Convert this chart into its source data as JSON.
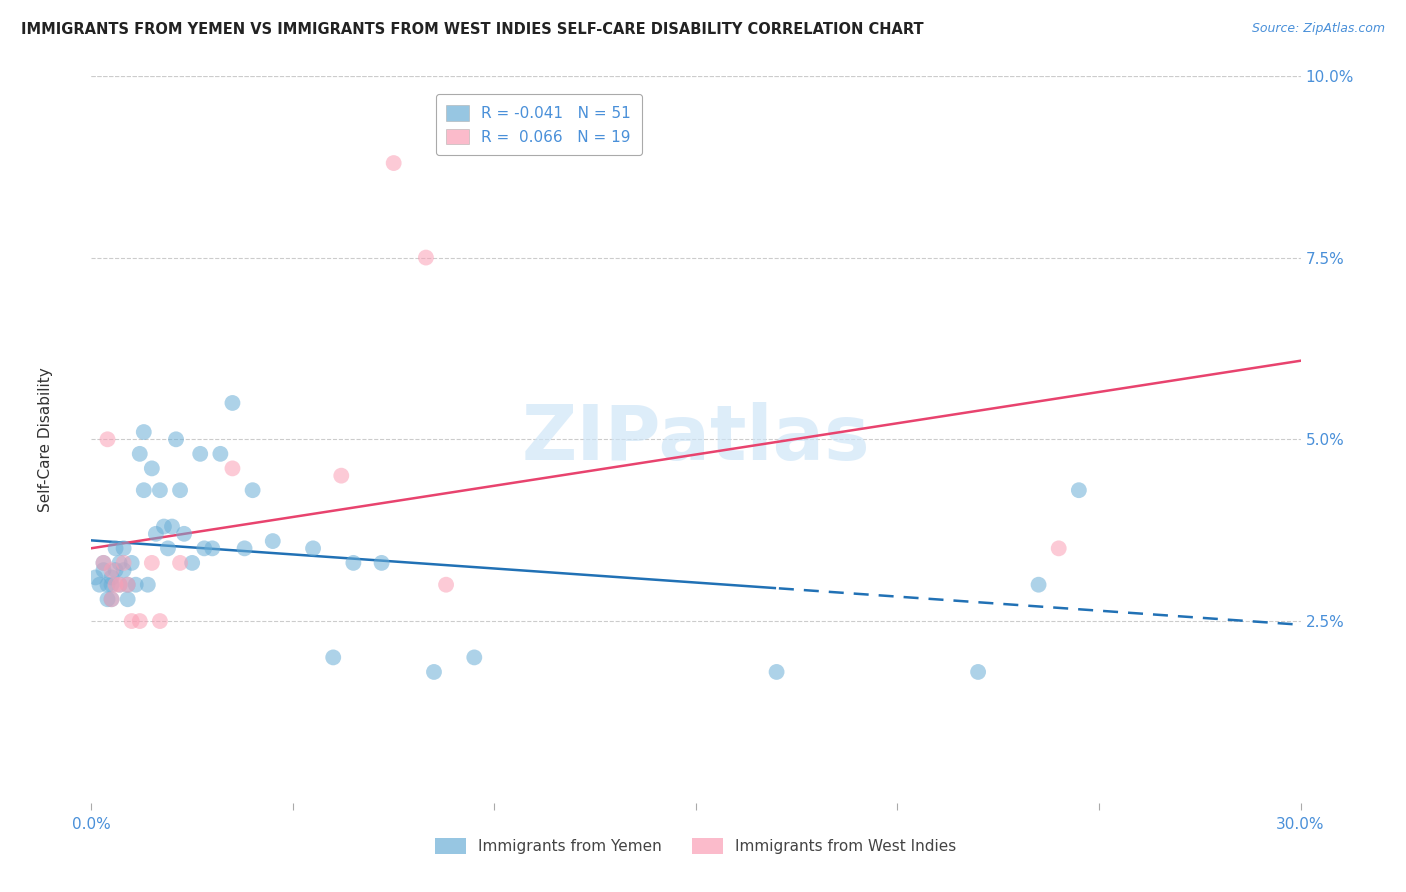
{
  "title": "IMMIGRANTS FROM YEMEN VS IMMIGRANTS FROM WEST INDIES SELF-CARE DISABILITY CORRELATION CHART",
  "source": "Source: ZipAtlas.com",
  "ylabel": "Self-Care Disability",
  "xlim": [
    0.0,
    0.3
  ],
  "ylim": [
    0.0,
    0.1
  ],
  "xticks": [
    0.0,
    0.05,
    0.1,
    0.15,
    0.2,
    0.25,
    0.3
  ],
  "xtick_labels": [
    "0.0%",
    "",
    "",
    "",
    "",
    "",
    "30.0%"
  ],
  "ytick_labels_right": [
    "2.5%",
    "5.0%",
    "7.5%",
    "10.0%"
  ],
  "yticks_right": [
    0.025,
    0.05,
    0.075,
    0.1
  ],
  "legend_label1": "Immigrants from Yemen",
  "legend_label2": "Immigrants from West Indies",
  "r1": "-0.041",
  "n1": "51",
  "r2": "0.066",
  "n2": "19",
  "color_blue": "#6baed6",
  "color_pink": "#fa9fb5",
  "color_blue_line": "#2171b5",
  "color_pink_line": "#e8436e",
  "background_color": "#ffffff",
  "watermark": "ZIPatlas",
  "yemen_x": [
    0.001,
    0.002,
    0.003,
    0.003,
    0.004,
    0.004,
    0.005,
    0.005,
    0.005,
    0.006,
    0.006,
    0.007,
    0.007,
    0.008,
    0.008,
    0.009,
    0.009,
    0.01,
    0.011,
    0.012,
    0.013,
    0.013,
    0.014,
    0.015,
    0.016,
    0.017,
    0.018,
    0.019,
    0.02,
    0.021,
    0.022,
    0.023,
    0.025,
    0.027,
    0.028,
    0.03,
    0.032,
    0.035,
    0.038,
    0.04,
    0.045,
    0.055,
    0.06,
    0.065,
    0.072,
    0.085,
    0.095,
    0.17,
    0.22,
    0.235,
    0.245
  ],
  "yemen_y": [
    0.031,
    0.03,
    0.033,
    0.032,
    0.03,
    0.028,
    0.03,
    0.031,
    0.028,
    0.032,
    0.035,
    0.033,
    0.03,
    0.035,
    0.032,
    0.03,
    0.028,
    0.033,
    0.03,
    0.048,
    0.051,
    0.043,
    0.03,
    0.046,
    0.037,
    0.043,
    0.038,
    0.035,
    0.038,
    0.05,
    0.043,
    0.037,
    0.033,
    0.048,
    0.035,
    0.035,
    0.048,
    0.055,
    0.035,
    0.043,
    0.036,
    0.035,
    0.02,
    0.033,
    0.033,
    0.018,
    0.02,
    0.018,
    0.018,
    0.03,
    0.043
  ],
  "west_indies_x": [
    0.003,
    0.004,
    0.005,
    0.005,
    0.006,
    0.007,
    0.008,
    0.009,
    0.01,
    0.012,
    0.015,
    0.017,
    0.022,
    0.035,
    0.062,
    0.075,
    0.083,
    0.088,
    0.24
  ],
  "west_indies_y": [
    0.033,
    0.05,
    0.032,
    0.028,
    0.03,
    0.03,
    0.033,
    0.03,
    0.025,
    0.025,
    0.033,
    0.025,
    0.033,
    0.046,
    0.045,
    0.088,
    0.075,
    0.03,
    0.035
  ],
  "line_split_x": 0.17
}
